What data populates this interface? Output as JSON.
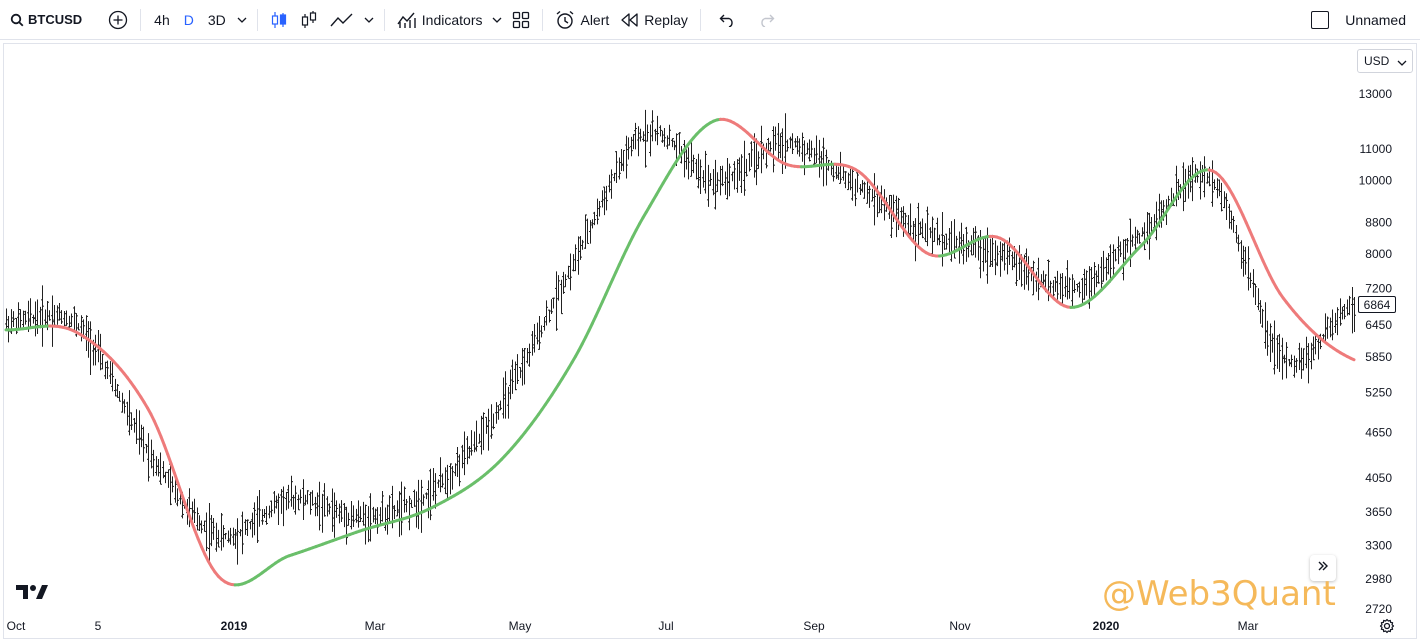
{
  "toolbar": {
    "symbol": "BTCUSD",
    "intervals": [
      "4h",
      "D",
      "3D"
    ],
    "active_interval": "D",
    "indicators_label": "Indicators",
    "alert_label": "Alert",
    "replay_label": "Replay",
    "layout_name": "Unnamed"
  },
  "price_scale": {
    "currency": "USD",
    "tick_labels": [
      "13000",
      "11000",
      "10000",
      "8800",
      "8000",
      "7200",
      "6450",
      "5850",
      "5250",
      "4650",
      "4050",
      "3650",
      "3300",
      "2980",
      "2720"
    ],
    "last_price": "6864"
  },
  "time_scale": {
    "tick_labels": [
      "Oct",
      "5",
      "2019",
      "Mar",
      "May",
      "Jul",
      "Sep",
      "Nov",
      "2020",
      "Mar"
    ],
    "bold_labels": [
      "2019",
      "2020"
    ]
  },
  "watermark": "@Web3Quant",
  "colors": {
    "accent": "#2962ff",
    "candle": "#222222",
    "ma_up": "#6abf6a",
    "ma_down": "#ee7b7b",
    "watermark": "#f5b95a"
  },
  "chart_data": {
    "type": "line",
    "title": "",
    "xlabel": "",
    "ylabel": "",
    "scale": "log",
    "ylim": [
      2720,
      13000
    ],
    "x": [
      "2018-10",
      "2018-11-05",
      "2018-11-25",
      "2018-12-15",
      "2019-01",
      "2019-02",
      "2019-03",
      "2019-04",
      "2019-05",
      "2019-06",
      "2019-07",
      "2019-08",
      "2019-09",
      "2019-10",
      "2019-11",
      "2019-12",
      "2020-01",
      "2020-02",
      "2020-03",
      "2020-04"
    ],
    "series": [
      {
        "values": [
          6500,
          6450,
          4400,
          3400,
          3800,
          3600,
          3900,
          5100,
          7800,
          11500,
          10000,
          11200,
          9800,
          8500,
          8000,
          7200,
          8500,
          10000,
          5800,
          6864
        ]
      },
      {
        "values": [
          6350,
          6300,
          5000,
          3000,
          3200,
          3450,
          3700,
          4300,
          5800,
          9000,
          12000,
          10500,
          10300,
          8000,
          8400,
          6800,
          8200,
          10300,
          7000,
          5800
        ]
      }
    ]
  }
}
